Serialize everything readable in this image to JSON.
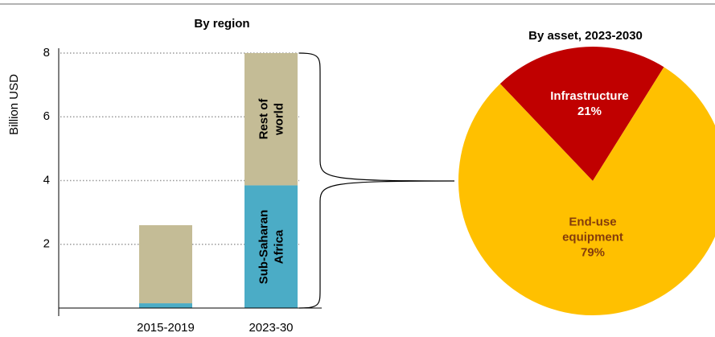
{
  "chart_data": [
    {
      "type": "bar",
      "stacked": true,
      "title": "By region",
      "y_label": "Billion USD",
      "categories": [
        "2015-2019",
        "2023-30"
      ],
      "series": [
        {
          "name": "Sub-Saharan Africa",
          "color": "#4bacc6",
          "values": [
            0.15,
            3.85
          ]
        },
        {
          "name": "Rest of world",
          "color": "#c4bc96",
          "values": [
            2.45,
            4.15
          ]
        }
      ],
      "ylim": [
        0,
        8
      ],
      "yticks": [
        2,
        4,
        6,
        8
      ],
      "grid": true
    },
    {
      "type": "pie",
      "title": "By asset, 2023-2030",
      "categories": [
        "Infrastructure",
        "End-use equipment"
      ],
      "values": [
        21,
        79
      ],
      "value_labels": [
        "21%",
        "79%"
      ],
      "colors": [
        "#c00000",
        "#ffc000"
      ],
      "label_colors": [
        "#ffffff",
        "#843c0c"
      ]
    }
  ]
}
